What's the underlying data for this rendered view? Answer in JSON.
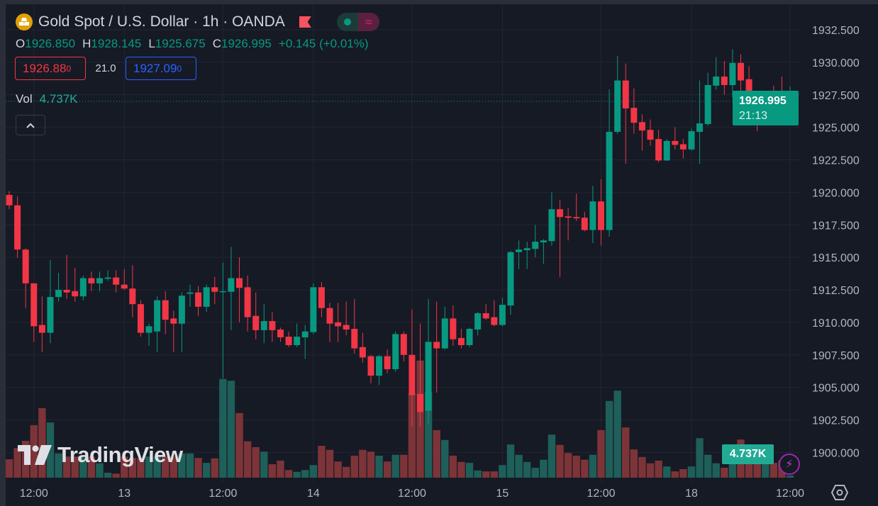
{
  "header": {
    "title": "Gold Spot / U.S. Dollar · 1h · OANDA",
    "ohlc": {
      "o_label": "O",
      "o": "1926.850",
      "h_label": "H",
      "h": "1928.145",
      "l_label": "L",
      "l": "1925.675",
      "c_label": "C",
      "c": "1926.995",
      "change": "+0.145 (+0.01%)"
    },
    "bid": {
      "main": "1926.88",
      "sup": "0"
    },
    "spread": "21.0",
    "ask": {
      "main": "1927.09",
      "sup": "0"
    },
    "volume_label": "Vol",
    "volume_value": "4.737K",
    "pill_icon": "≈"
  },
  "price_tag": {
    "price": "1926.995",
    "countdown": "21:13"
  },
  "volume_tag": "4.737K",
  "watermark": "TradingView",
  "colors": {
    "up": "#089981",
    "down": "#f23645",
    "background": "#161a25",
    "grid": "#232632"
  },
  "chart_data": {
    "type": "candlestick",
    "title": "Gold Spot / U.S. Dollar · 1h · OANDA",
    "ylim": [
      1898.9,
      1933.0
    ],
    "y_ticks": [
      "1932.500",
      "1930.000",
      "1927.500",
      "1925.000",
      "1922.500",
      "1920.000",
      "1917.500",
      "1915.000",
      "1912.500",
      "1910.000",
      "1907.500",
      "1905.000",
      "1902.500",
      "1900.000"
    ],
    "x_ticks": [
      {
        "i": 3,
        "label": "12:00"
      },
      {
        "i": 14,
        "label": "13"
      },
      {
        "i": 26,
        "label": "12:00"
      },
      {
        "i": 37,
        "label": "14"
      },
      {
        "i": 49,
        "label": "12:00"
      },
      {
        "i": 60,
        "label": "15"
      },
      {
        "i": 72,
        "label": "12:00"
      },
      {
        "i": 83,
        "label": "18"
      },
      {
        "i": 95,
        "label": "12:00"
      }
    ],
    "grid": true,
    "volume_unit": "K",
    "candles_ohlcv": [
      [
        1919.8,
        1920.1,
        1918.7,
        1919.0,
        41
      ],
      [
        1919.0,
        1919.7,
        1914.95,
        1915.6,
        66
      ],
      [
        1915.6,
        1915.7,
        1911.1,
        1913.0,
        82
      ],
      [
        1913.0,
        1913.0,
        1908.5,
        1909.7,
        117
      ],
      [
        1909.8,
        1912.0,
        1907.7,
        1909.2,
        155
      ],
      [
        1909.2,
        1914.8,
        1908.4,
        1911.95,
        123
      ],
      [
        1911.95,
        1913.8,
        1911.6,
        1912.5,
        54
      ],
      [
        1912.5,
        1915.2,
        1911.8,
        1912.3,
        47
      ],
      [
        1912.4,
        1914.2,
        1911.6,
        1912.0,
        47
      ],
      [
        1912.0,
        1913.6,
        1911.7,
        1913.4,
        47
      ],
      [
        1913.4,
        1913.9,
        1912.4,
        1913.0,
        47
      ],
      [
        1913.0,
        1913.9,
        1912.4,
        1913.4,
        32
      ],
      [
        1913.35,
        1914.0,
        1913.2,
        1913.45,
        11
      ],
      [
        1913.45,
        1914.0,
        1912.3,
        1912.9,
        9
      ],
      [
        1912.9,
        1914.1,
        1912.5,
        1912.6,
        47
      ],
      [
        1912.6,
        1914.4,
        1910.4,
        1911.4,
        44
      ],
      [
        1911.4,
        1911.7,
        1908.9,
        1909.2,
        44
      ],
      [
        1909.2,
        1909.9,
        1908.2,
        1909.7,
        47
      ],
      [
        1909.3,
        1912.0,
        1907.7,
        1911.7,
        47
      ],
      [
        1911.7,
        1912.4,
        1909.1,
        1910.2,
        47
      ],
      [
        1910.3,
        1910.9,
        1907.7,
        1909.9,
        47
      ],
      [
        1909.9,
        1912.3,
        1907.7,
        1912.05,
        54
      ],
      [
        1912.2,
        1912.9,
        1911.2,
        1912.3,
        54
      ],
      [
        1912.3,
        1912.8,
        1910.5,
        1911.2,
        44
      ],
      [
        1911.2,
        1912.9,
        1910.8,
        1912.7,
        33
      ],
      [
        1912.7,
        1913.5,
        1911.4,
        1912.35,
        43
      ],
      [
        1912.4,
        1914.6,
        1905.7,
        1912.4,
        220
      ],
      [
        1912.35,
        1915.8,
        1909.4,
        1913.4,
        216
      ],
      [
        1913.4,
        1915.0,
        1910.0,
        1912.65,
        144
      ],
      [
        1912.7,
        1913.6,
        1909.3,
        1910.4,
        81
      ],
      [
        1910.5,
        1912.3,
        1908.7,
        1909.4,
        68
      ],
      [
        1909.4,
        1911.4,
        1908.4,
        1910.1,
        58
      ],
      [
        1910.1,
        1910.8,
        1908.5,
        1909.4,
        30
      ],
      [
        1909.45,
        1909.6,
        1908.5,
        1908.85,
        38
      ],
      [
        1908.9,
        1909.3,
        1908.1,
        1908.25,
        17
      ],
      [
        1908.25,
        1909.9,
        1908.1,
        1908.9,
        13
      ],
      [
        1908.85,
        1909.8,
        1907.2,
        1909.3,
        17
      ],
      [
        1909.25,
        1913.0,
        1909.1,
        1912.7,
        28
      ],
      [
        1912.7,
        1913.1,
        1910.4,
        1911.1,
        71
      ],
      [
        1911.1,
        1911.5,
        1908.5,
        1909.9,
        62
      ],
      [
        1910.0,
        1911.5,
        1908.5,
        1909.7,
        36
      ],
      [
        1909.8,
        1911.6,
        1909.0,
        1909.45,
        24
      ],
      [
        1909.5,
        1911.8,
        1907.6,
        1908.0,
        49
      ],
      [
        1908.1,
        1909.2,
        1906.9,
        1907.3,
        62
      ],
      [
        1907.4,
        1907.5,
        1905.3,
        1905.9,
        58
      ],
      [
        1905.9,
        1907.5,
        1905.2,
        1907.4,
        49
      ],
      [
        1907.4,
        1907.9,
        1906.1,
        1906.4,
        36
      ],
      [
        1906.4,
        1909.3,
        1906.2,
        1909.1,
        51
      ],
      [
        1909.1,
        1909.3,
        1907.0,
        1907.5,
        51
      ],
      [
        1907.5,
        1911.0,
        1902.0,
        1904.4,
        188
      ],
      [
        1904.5,
        1909.9,
        1902.0,
        1903.1,
        261
      ],
      [
        1903.2,
        1911.8,
        1902.2,
        1908.5,
        191
      ],
      [
        1908.5,
        1911.6,
        1904.6,
        1908.0,
        106
      ],
      [
        1908.0,
        1911.2,
        1907.9,
        1910.3,
        84
      ],
      [
        1910.3,
        1911.3,
        1908.2,
        1908.7,
        49
      ],
      [
        1908.8,
        1909.5,
        1908.0,
        1908.25,
        35
      ],
      [
        1908.25,
        1909.6,
        1908.1,
        1909.5,
        33
      ],
      [
        1909.45,
        1910.8,
        1909.0,
        1910.7,
        16
      ],
      [
        1910.7,
        1911.4,
        1910.2,
        1910.3,
        14
      ],
      [
        1910.4,
        1911.7,
        1909.7,
        1909.8,
        14
      ],
      [
        1909.8,
        1911.9,
        1909.7,
        1911.35,
        28
      ],
      [
        1911.3,
        1915.5,
        1910.6,
        1915.4,
        74
      ],
      [
        1915.4,
        1916.3,
        1914.1,
        1915.6,
        51
      ],
      [
        1915.55,
        1916.2,
        1914.1,
        1915.7,
        35
      ],
      [
        1915.65,
        1917.5,
        1915.0,
        1916.2,
        22
      ],
      [
        1916.15,
        1916.4,
        1914.5,
        1916.3,
        40
      ],
      [
        1916.25,
        1920.0,
        1915.9,
        1918.7,
        96
      ],
      [
        1918.7,
        1919.4,
        1913.5,
        1918.1,
        73
      ],
      [
        1918.15,
        1918.8,
        1916.3,
        1918.05,
        55
      ],
      [
        1918.1,
        1919.9,
        1917.8,
        1918.0,
        49
      ],
      [
        1918.05,
        1918.5,
        1917.0,
        1917.1,
        40
      ],
      [
        1917.1,
        1920.5,
        1916.1,
        1919.3,
        51
      ],
      [
        1919.3,
        1921.0,
        1915.9,
        1917.1,
        106
      ],
      [
        1917.1,
        1927.9,
        1916.6,
        1924.65,
        171
      ],
      [
        1924.65,
        1930.5,
        1924.5,
        1928.6,
        194
      ],
      [
        1928.6,
        1929.9,
        1922.2,
        1926.45,
        112
      ],
      [
        1926.5,
        1928.0,
        1924.5,
        1925.35,
        63
      ],
      [
        1925.4,
        1926.0,
        1923.2,
        1924.75,
        46
      ],
      [
        1924.8,
        1925.6,
        1923.6,
        1924.05,
        32
      ],
      [
        1924.1,
        1924.8,
        1922.3,
        1922.45,
        38
      ],
      [
        1922.45,
        1924.1,
        1922.4,
        1923.95,
        25
      ],
      [
        1923.95,
        1925.0,
        1923.3,
        1923.65,
        14
      ],
      [
        1923.7,
        1924.1,
        1922.6,
        1923.3,
        19
      ],
      [
        1923.3,
        1924.9,
        1923.2,
        1924.7,
        25
      ],
      [
        1924.65,
        1928.6,
        1922.2,
        1925.3,
        88
      ],
      [
        1925.25,
        1929.2,
        1925.1,
        1928.25,
        51
      ],
      [
        1928.2,
        1930.4,
        1927.9,
        1928.9,
        32
      ],
      [
        1928.9,
        1930.1,
        1927.5,
        1928.25,
        22
      ],
      [
        1928.25,
        1931.0,
        1927.3,
        1929.95,
        35
      ],
      [
        1929.95,
        1930.6,
        1927.5,
        1928.6,
        85
      ],
      [
        1928.7,
        1929.7,
        1926.5,
        1926.5,
        58
      ],
      [
        1926.55,
        1927.3,
        1924.7,
        1926.2,
        41
      ],
      [
        1926.2,
        1927.1,
        1925.4,
        1927.05,
        33
      ],
      [
        1927.0,
        1928.2,
        1926.4,
        1926.8,
        33
      ],
      [
        1926.9,
        1928.9,
        1926.6,
        1926.8,
        38
      ],
      [
        1926.85,
        1928.145,
        1925.675,
        1926.995,
        4.737
      ]
    ],
    "last_price": 1926.995
  }
}
